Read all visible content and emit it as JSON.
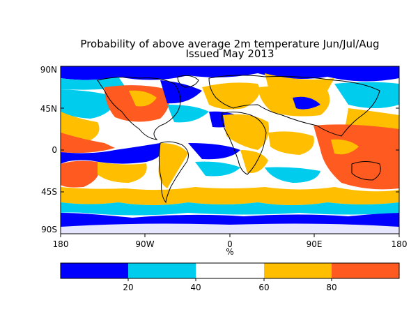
{
  "title": {
    "line1": "Probability of above average 2m temperature Jun/Jul/Aug",
    "line2": "Issued May 2013"
  },
  "map": {
    "lat_labels": [
      "90N",
      "45N",
      "0",
      "45S",
      "90S"
    ],
    "lon_labels": [
      "180",
      "90W",
      "0",
      "90E",
      "180"
    ],
    "unit_label": "%"
  },
  "colorbar": {
    "tick_labels": [
      "20",
      "40",
      "60",
      "80"
    ],
    "bins": [
      {
        "range": "0-20",
        "color": "#0000ff"
      },
      {
        "range": "20-40",
        "color": "#00ccee"
      },
      {
        "range": "40-60",
        "color": "#ffffff"
      },
      {
        "range": "60-80",
        "color": "#ffbf00"
      },
      {
        "range": "80-100",
        "color": "#ff5a1f"
      }
    ]
  },
  "colors": {
    "blue": "#0000ff",
    "cyan": "#00ccee",
    "white": "#ffffff",
    "orange": "#ffbf00",
    "red": "#ff5a1f"
  }
}
